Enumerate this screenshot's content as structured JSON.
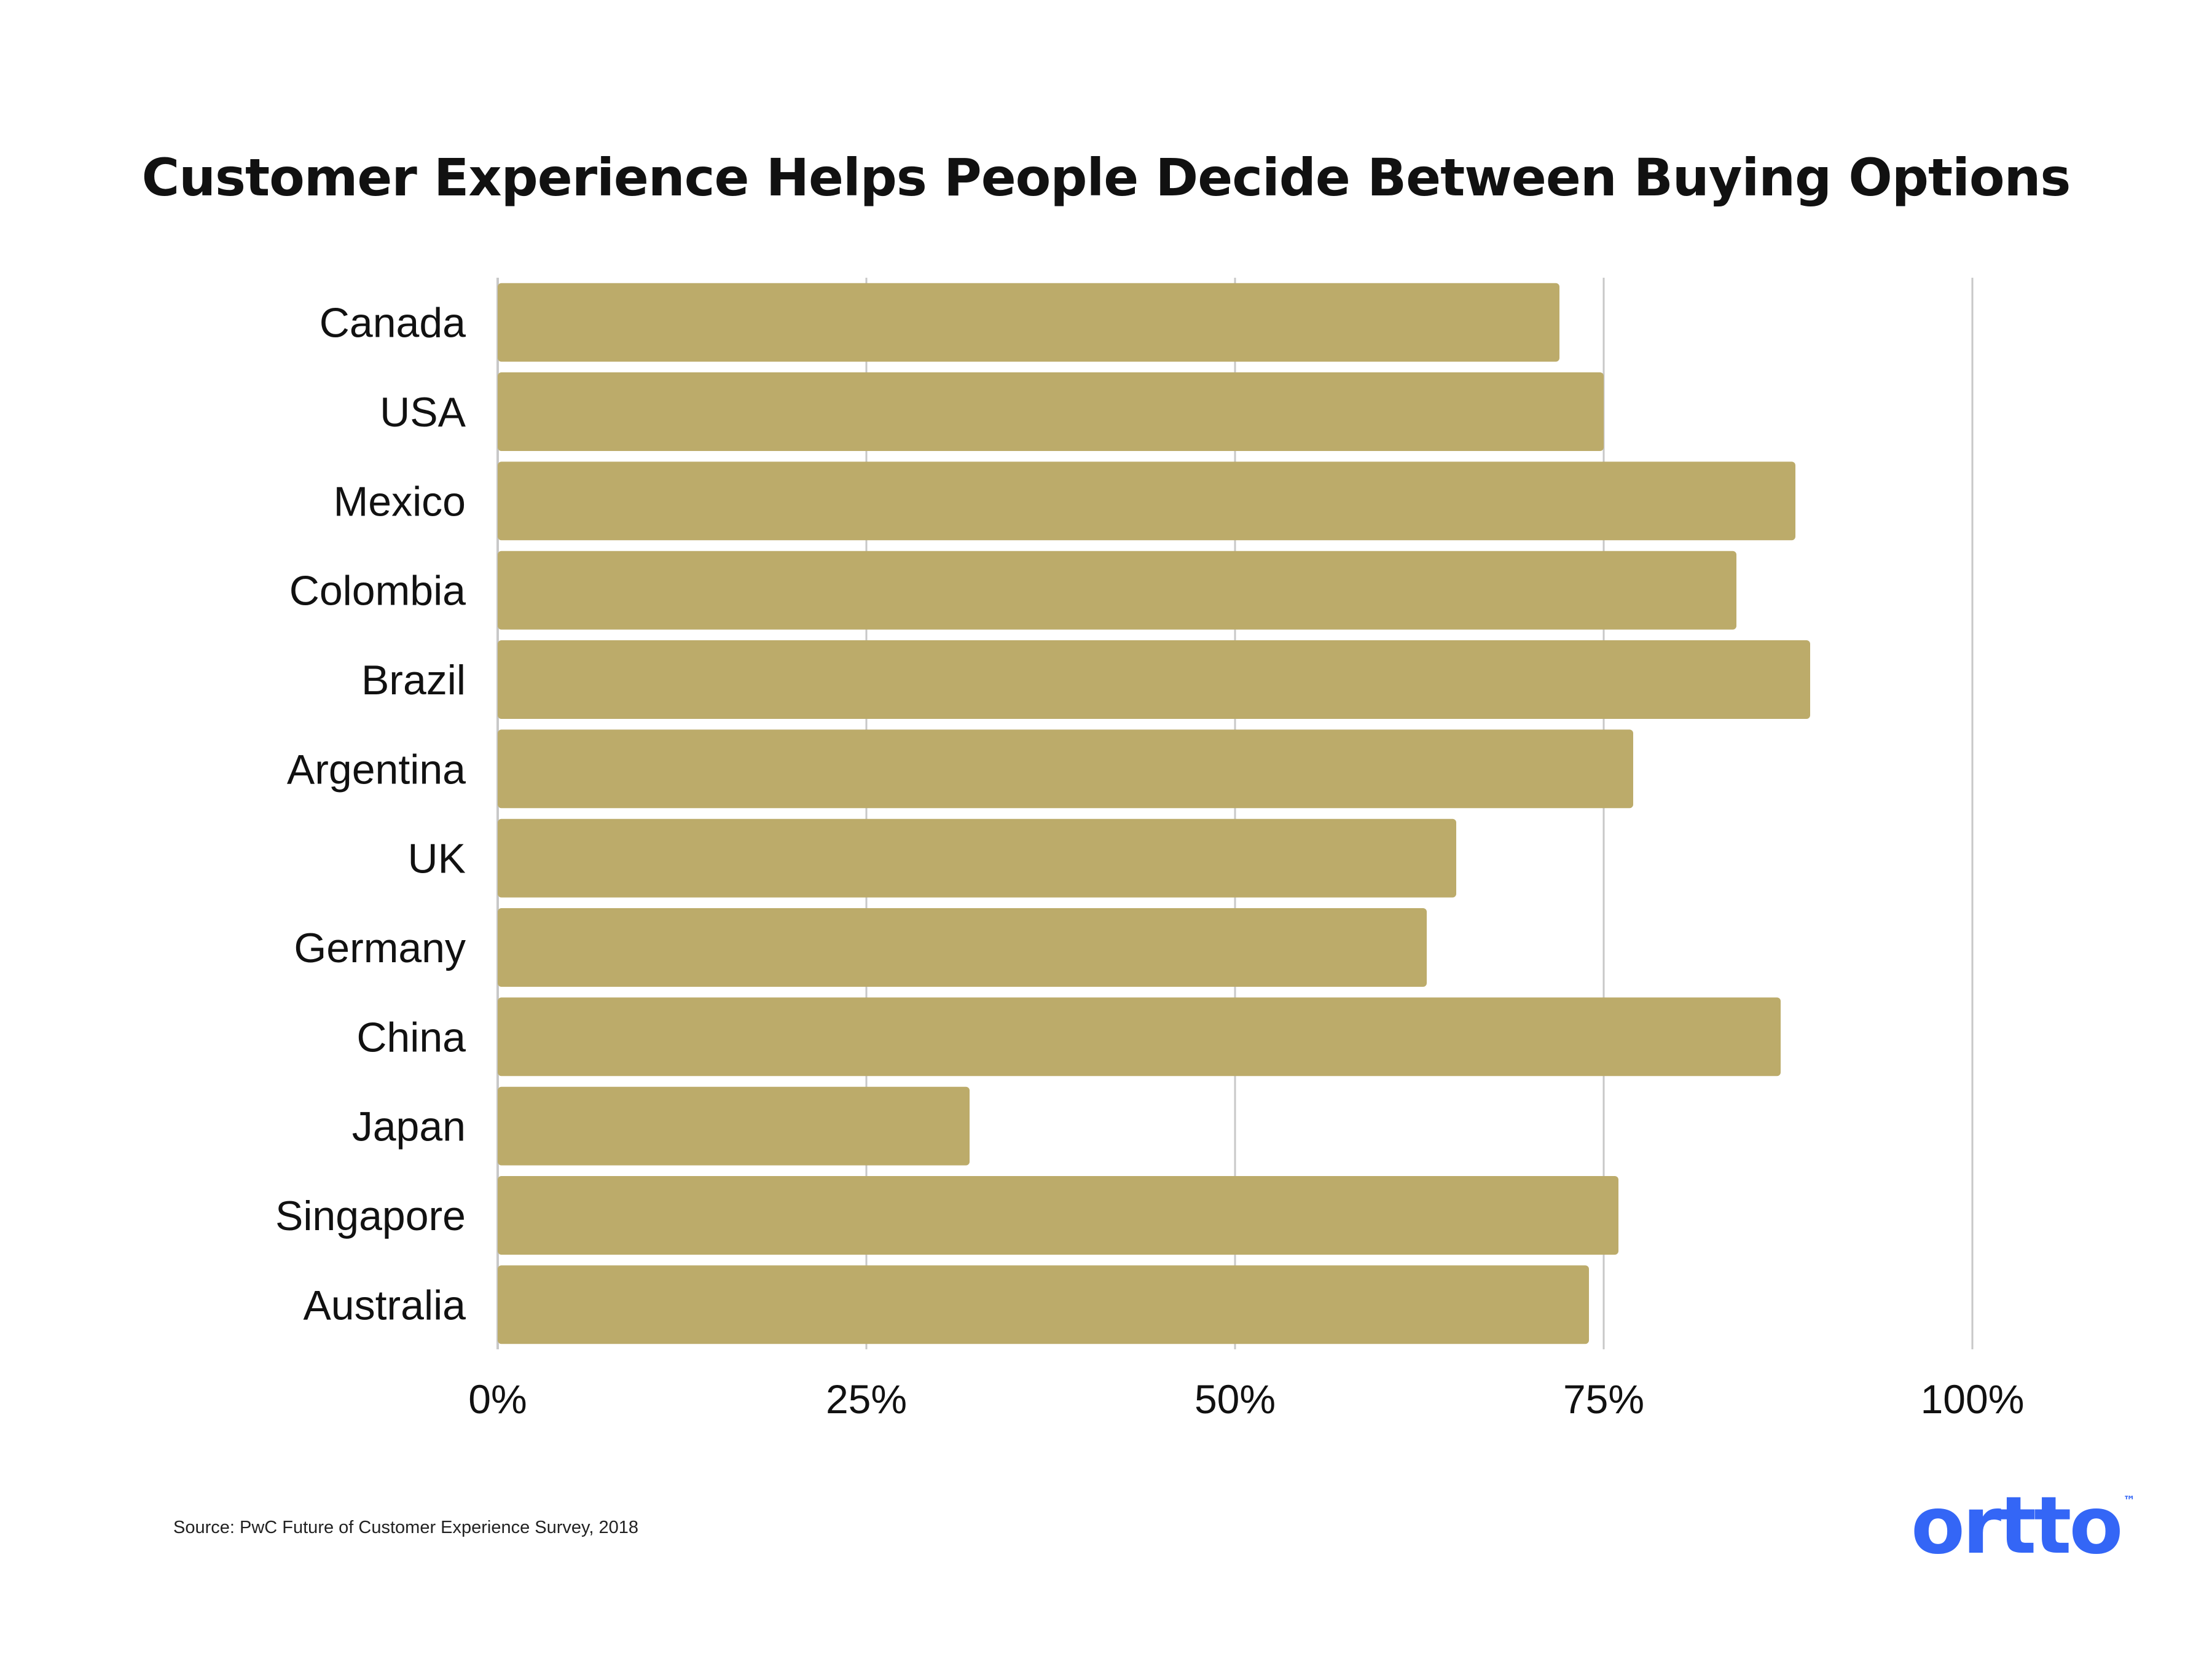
{
  "colors": {
    "bar": "#BCAB6A",
    "grid": "#C8C8C8",
    "text": "#111111",
    "brand": "#3466F6"
  },
  "chart_data": {
    "type": "bar",
    "orientation": "horizontal",
    "title": "Customer Experience Helps People Decide Between Buying Options",
    "categories": [
      "Canada",
      "USA",
      "Mexico",
      "Colombia",
      "Brazil",
      "Argentina",
      "UK",
      "Germany",
      "China",
      "Japan",
      "Singapore",
      "Australia"
    ],
    "values": [
      72,
      75,
      88,
      84,
      89,
      77,
      65,
      63,
      87,
      32,
      76,
      74
    ],
    "xlim": [
      0,
      100
    ],
    "xticks": [
      0,
      25,
      50,
      75,
      100
    ],
    "xtick_labels": [
      "0%",
      "25%",
      "50%",
      "75%",
      "100%"
    ],
    "grid": true
  },
  "footer": {
    "source": "Source: PwC Future of Customer Experience Survey, 2018",
    "logo_text": "ortto",
    "logo_tm": "™"
  },
  "icons": {
    "logo": "ortto-logo"
  }
}
